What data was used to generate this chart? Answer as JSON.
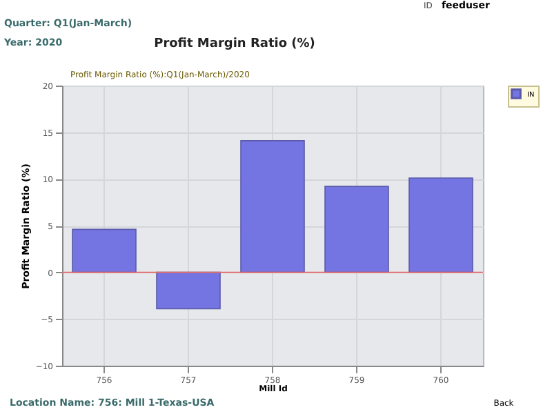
{
  "chart_data": {
    "type": "bar",
    "title": "Profit Margin Ratio (%)",
    "xlabel": "Mill Id",
    "ylabel": "Profit Margin Ratio (%)",
    "categories": [
      "756",
      "757",
      "758",
      "759",
      "760"
    ],
    "series": [
      {
        "name": "IN",
        "color": "#7474e2",
        "values": [
          4.6,
          -3.9,
          14.1,
          9.2,
          10.1
        ]
      }
    ],
    "ylim": [
      -10,
      20
    ],
    "yticks": [
      -10,
      -5,
      0,
      5,
      10,
      15,
      20
    ],
    "grid": true,
    "legend": "top right",
    "ref_lines": [
      {
        "axis": "y",
        "value": 0,
        "color": "#e07070"
      }
    ],
    "annotations": [
      "ID",
      "feeduser",
      "Quarter: Q1(Jan-March)",
      "Year: 2020",
      "Profit Margin Ratio (%):Q1(Jan-March)/2020",
      "Location Name: 756: Mill 1-Texas-USA",
      "Back"
    ]
  }
}
